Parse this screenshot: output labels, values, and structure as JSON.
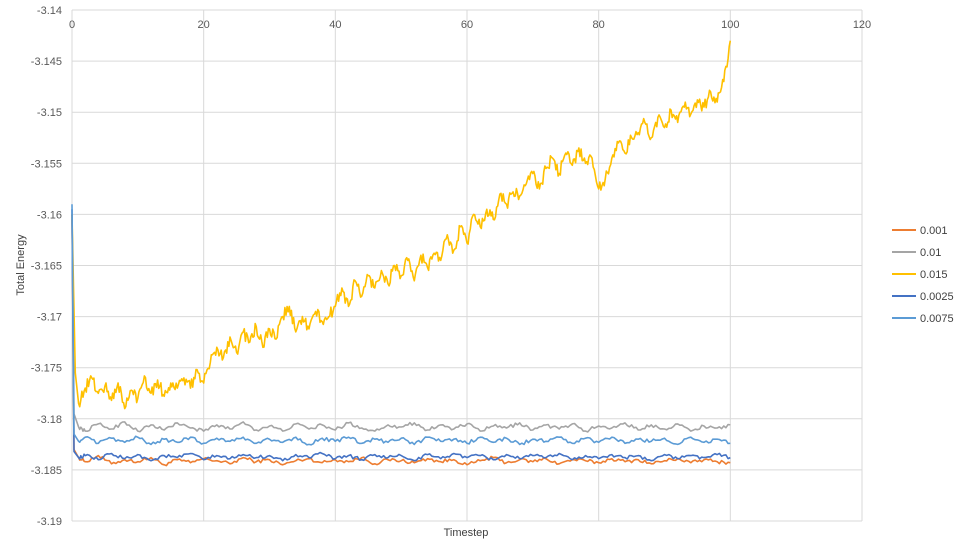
{
  "chart_data": {
    "type": "line",
    "title": "",
    "xlabel": "Timestep",
    "ylabel": "Total Energy",
    "xlim": [
      0,
      120
    ],
    "ylim": [
      -3.19,
      -3.14
    ],
    "x_ticks": [
      0,
      20,
      40,
      60,
      80,
      100,
      120
    ],
    "y_ticks": [
      -3.14,
      -3.145,
      -3.15,
      -3.155,
      -3.16,
      -3.165,
      -3.17,
      -3.175,
      -3.18,
      -3.185,
      -3.19
    ],
    "x_tick_labels": [
      "0",
      "20",
      "40",
      "60",
      "80",
      "100",
      "120"
    ],
    "y_tick_labels": [
      "-3.14",
      "-3.145",
      "-3.15",
      "-3.155",
      "-3.16",
      "-3.165",
      "-3.17",
      "-3.175",
      "-3.18",
      "-3.185",
      "-3.19"
    ],
    "x_axis_position": "top",
    "grid": true,
    "legend_position": "right",
    "series": [
      {
        "name": "0.001",
        "color": "#ED7D31",
        "x": [
          0,
          0.3,
          1,
          2,
          4,
          6,
          8,
          10,
          12,
          14,
          16,
          18,
          20,
          22,
          24,
          26,
          28,
          30,
          32,
          34,
          36,
          38,
          40,
          42,
          44,
          46,
          48,
          50,
          52,
          54,
          56,
          58,
          60,
          62,
          64,
          66,
          68,
          70,
          72,
          74,
          76,
          78,
          80,
          82,
          84,
          86,
          88,
          90,
          92,
          94,
          96,
          98,
          100
        ],
        "y": [
          -3.1605,
          -3.183,
          -3.1838,
          -3.1842,
          -3.1836,
          -3.1844,
          -3.184,
          -3.1842,
          -3.1838,
          -3.1845,
          -3.184,
          -3.1843,
          -3.1839,
          -3.1841,
          -3.1844,
          -3.1838,
          -3.1842,
          -3.184,
          -3.1845,
          -3.1841,
          -3.1839,
          -3.1843,
          -3.184,
          -3.1842,
          -3.1838,
          -3.1844,
          -3.184,
          -3.1841,
          -3.1843,
          -3.1839,
          -3.1842,
          -3.184,
          -3.1845,
          -3.1841,
          -3.1838,
          -3.1843,
          -3.184,
          -3.1842,
          -3.1839,
          -3.1844,
          -3.184,
          -3.1841,
          -3.1843,
          -3.1839,
          -3.1842,
          -3.184,
          -3.1844,
          -3.1841,
          -3.1839,
          -3.1843,
          -3.184,
          -3.1842,
          -3.1843
        ]
      },
      {
        "name": "0.01",
        "color": "#A5A5A5",
        "x": [
          0,
          0.3,
          1,
          2,
          4,
          6,
          8,
          10,
          12,
          14,
          16,
          18,
          20,
          22,
          24,
          26,
          28,
          30,
          32,
          34,
          36,
          38,
          40,
          42,
          44,
          46,
          48,
          50,
          52,
          54,
          56,
          58,
          60,
          62,
          64,
          66,
          68,
          70,
          72,
          74,
          76,
          78,
          80,
          82,
          84,
          86,
          88,
          90,
          92,
          94,
          96,
          98,
          100
        ],
        "y": [
          -3.16,
          -3.1795,
          -3.1808,
          -3.1812,
          -3.1805,
          -3.181,
          -3.1803,
          -3.1812,
          -3.1806,
          -3.1811,
          -3.1804,
          -3.1809,
          -3.1812,
          -3.1806,
          -3.181,
          -3.1803,
          -3.1811,
          -3.1807,
          -3.1812,
          -3.1805,
          -3.181,
          -3.1806,
          -3.1811,
          -3.1804,
          -3.1809,
          -3.1812,
          -3.1806,
          -3.1808,
          -3.1804,
          -3.1811,
          -3.1806,
          -3.181,
          -3.1805,
          -3.1812,
          -3.1807,
          -3.1809,
          -3.1804,
          -3.1811,
          -3.1806,
          -3.181,
          -3.1805,
          -3.1812,
          -3.1807,
          -3.1809,
          -3.1804,
          -3.1811,
          -3.1806,
          -3.181,
          -3.1805,
          -3.1812,
          -3.1807,
          -3.1809,
          -3.1806
        ]
      },
      {
        "name": "0.015",
        "color": "#FFC000",
        "x": [
          0,
          0.5,
          1,
          2,
          3,
          4,
          5,
          6,
          7,
          8,
          9,
          10,
          11,
          12,
          13,
          14,
          15,
          16,
          17,
          18,
          19,
          20,
          21,
          22,
          23,
          24,
          25,
          26,
          27,
          28,
          29,
          30,
          31,
          32,
          33,
          34,
          35,
          36,
          37,
          38,
          39,
          40,
          41,
          42,
          43,
          44,
          45,
          46,
          47,
          48,
          49,
          50,
          51,
          52,
          53,
          54,
          55,
          56,
          57,
          58,
          59,
          60,
          61,
          62,
          63,
          64,
          65,
          66,
          67,
          68,
          69,
          70,
          71,
          72,
          73,
          74,
          75,
          76,
          77,
          78,
          79,
          80,
          81,
          82,
          83,
          84,
          85,
          86,
          87,
          88,
          89,
          90,
          91,
          92,
          93,
          94,
          95,
          96,
          97,
          98,
          99,
          100
        ],
        "y": [
          -3.16,
          -3.1755,
          -3.1785,
          -3.177,
          -3.176,
          -3.1775,
          -3.1768,
          -3.1782,
          -3.1765,
          -3.179,
          -3.1772,
          -3.178,
          -3.1758,
          -3.1775,
          -3.1762,
          -3.1778,
          -3.1765,
          -3.177,
          -3.176,
          -3.177,
          -3.1752,
          -3.1765,
          -3.1745,
          -3.173,
          -3.174,
          -3.172,
          -3.1735,
          -3.1715,
          -3.1725,
          -3.171,
          -3.173,
          -3.1712,
          -3.1722,
          -3.17,
          -3.169,
          -3.1715,
          -3.17,
          -3.1712,
          -3.1695,
          -3.1705,
          -3.17,
          -3.169,
          -3.1672,
          -3.169,
          -3.1665,
          -3.168,
          -3.166,
          -3.1672,
          -3.1655,
          -3.1668,
          -3.165,
          -3.166,
          -3.1645,
          -3.1665,
          -3.164,
          -3.1652,
          -3.1638,
          -3.1645,
          -3.162,
          -3.1635,
          -3.1612,
          -3.1628,
          -3.16,
          -3.1612,
          -3.1595,
          -3.1605,
          -3.158,
          -3.159,
          -3.1578,
          -3.1582,
          -3.157,
          -3.156,
          -3.1575,
          -3.1555,
          -3.1545,
          -3.156,
          -3.154,
          -3.1552,
          -3.1535,
          -3.155,
          -3.1545,
          -3.1575,
          -3.1565,
          -3.1545,
          -3.153,
          -3.154,
          -3.1525,
          -3.152,
          -3.151,
          -3.1525,
          -3.1505,
          -3.1515,
          -3.1498,
          -3.151,
          -3.1495,
          -3.1502,
          -3.1488,
          -3.1495,
          -3.148,
          -3.149,
          -3.147,
          -3.143
        ]
      },
      {
        "name": "0.0025",
        "color": "#4472C4",
        "x": [
          0,
          0.3,
          1,
          2,
          4,
          6,
          8,
          10,
          12,
          14,
          16,
          18,
          20,
          22,
          24,
          26,
          28,
          30,
          32,
          34,
          36,
          38,
          40,
          42,
          44,
          46,
          48,
          50,
          52,
          54,
          56,
          58,
          60,
          62,
          64,
          66,
          68,
          70,
          72,
          74,
          76,
          78,
          80,
          82,
          84,
          86,
          88,
          90,
          92,
          94,
          96,
          98,
          100
        ],
        "y": [
          -3.1595,
          -3.1832,
          -3.1838,
          -3.1836,
          -3.184,
          -3.1834,
          -3.1839,
          -3.1835,
          -3.1841,
          -3.1836,
          -3.1838,
          -3.1834,
          -3.184,
          -3.1836,
          -3.1839,
          -3.1835,
          -3.1838,
          -3.1836,
          -3.1841,
          -3.1835,
          -3.1838,
          -3.1834,
          -3.1839,
          -3.1836,
          -3.184,
          -3.1835,
          -3.1838,
          -3.1836,
          -3.1841,
          -3.1835,
          -3.1839,
          -3.1834,
          -3.1838,
          -3.1836,
          -3.184,
          -3.1835,
          -3.1839,
          -3.1836,
          -3.1838,
          -3.1834,
          -3.184,
          -3.1836,
          -3.1839,
          -3.1835,
          -3.1838,
          -3.1836,
          -3.1841,
          -3.1835,
          -3.1839,
          -3.1836,
          -3.1838,
          -3.1835,
          -3.1838
        ]
      },
      {
        "name": "0.0075",
        "color": "#5B9BD5",
        "x": [
          0,
          0.3,
          1,
          2,
          4,
          6,
          8,
          10,
          12,
          14,
          16,
          18,
          20,
          22,
          24,
          26,
          28,
          30,
          32,
          34,
          36,
          38,
          40,
          42,
          44,
          46,
          48,
          50,
          52,
          54,
          56,
          58,
          60,
          62,
          64,
          66,
          68,
          70,
          72,
          74,
          76,
          78,
          80,
          82,
          84,
          86,
          88,
          90,
          92,
          94,
          96,
          98,
          100
        ],
        "y": [
          -3.159,
          -3.1815,
          -3.1822,
          -3.1818,
          -3.1824,
          -3.1819,
          -3.1823,
          -3.1818,
          -3.1825,
          -3.182,
          -3.1823,
          -3.1818,
          -3.1824,
          -3.1819,
          -3.1822,
          -3.1818,
          -3.1824,
          -3.182,
          -3.1823,
          -3.1818,
          -3.1825,
          -3.1819,
          -3.1822,
          -3.1818,
          -3.1824,
          -3.182,
          -3.1823,
          -3.1819,
          -3.1825,
          -3.1818,
          -3.1822,
          -3.182,
          -3.1824,
          -3.1818,
          -3.1823,
          -3.1819,
          -3.1825,
          -3.182,
          -3.1822,
          -3.1818,
          -3.1824,
          -3.1819,
          -3.1823,
          -3.1818,
          -3.1824,
          -3.182,
          -3.1822,
          -3.1819,
          -3.1825,
          -3.1818,
          -3.1823,
          -3.182,
          -3.1824
        ]
      }
    ]
  }
}
